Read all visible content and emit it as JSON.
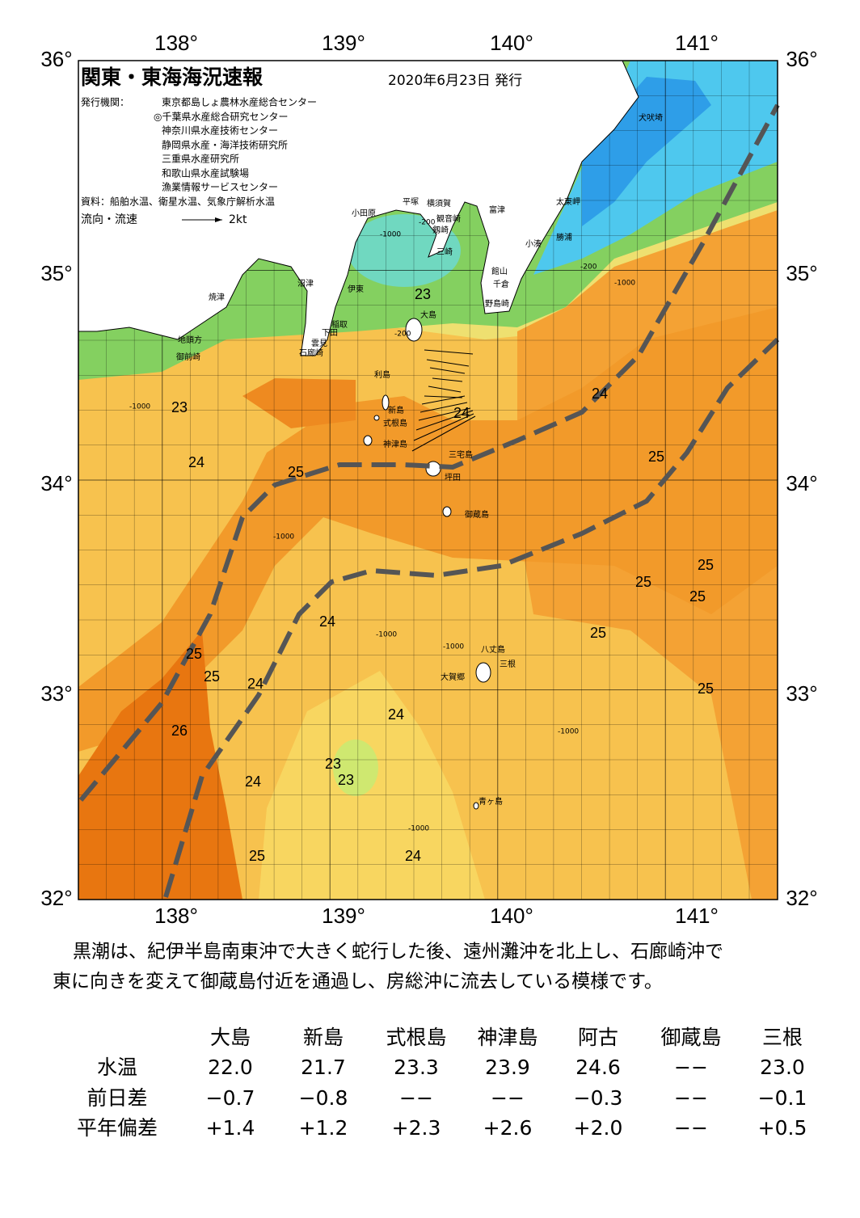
{
  "header": {
    "title": "関東・東海海況速報",
    "date": "2020年6月23日 発行",
    "issuer_label": "発行機関：",
    "issuers": [
      "東京都島しょ農林水産総合センター",
      "◎千葉県水産総合研究センター",
      "神奈川県水産技術センター",
      "静岡県水産・海洋技術研究所",
      "三重県水産研究所",
      "和歌山県水産試験場",
      "漁業情報サービスセンター"
    ],
    "source": "資料：船舶水温、衛星水温、気象庁解析水温",
    "flow_label": "流向・流速",
    "flow_scale": "2kt"
  },
  "axes": {
    "lat": [
      "36°",
      "35°",
      "34°",
      "33°",
      "32°"
    ],
    "lon": [
      "138°",
      "139°",
      "140°",
      "141°"
    ]
  },
  "places": [
    "犬吠埼",
    "太東岬",
    "勝浦",
    "小湊",
    "富津",
    "館山",
    "千倉",
    "野島崎",
    "横須賀",
    "観音崎",
    "剱崎",
    "三崎",
    "平塚",
    "小田原",
    "沼津",
    "伊東",
    "稲取",
    "下田",
    "雲見",
    "石廊崎",
    "焼津",
    "地頭方",
    "御前崎",
    "大島",
    "利島",
    "新島",
    "式根島",
    "神津島",
    "三宅島",
    "坪田",
    "御蔵島",
    "八丈島",
    "三根",
    "大賀郷",
    "青ヶ島"
  ],
  "temperatures": [
    "23",
    "23",
    "24",
    "25",
    "24",
    "24",
    "25",
    "25",
    "25",
    "25",
    "25",
    "24",
    "25",
    "25",
    "24",
    "25",
    "24",
    "26",
    "23",
    "23",
    "24",
    "25",
    "24"
  ],
  "depths": [
    "-200",
    "-1000",
    "-1000",
    "-1000",
    "-1000",
    "-1000",
    "-1000",
    "-200",
    "-1000",
    "-200",
    "-1000"
  ],
  "description": [
    "黒潮は、紀伊半島南東沖で大きく蛇行した後、遠州灘沖を北上し、石廊崎沖で",
    "東に向きを変えて御蔵島付近を通過し、房総沖に流去している模様です。"
  ],
  "table": {
    "columns": [
      "大島",
      "新島",
      "式根島",
      "神津島",
      "阿古",
      "御蔵島",
      "三根"
    ],
    "rows": [
      {
        "label": "水温",
        "cells": [
          "22.0",
          "21.7",
          "23.3",
          "23.9",
          "24.6",
          "−−",
          "23.0"
        ]
      },
      {
        "label": "前日差",
        "cells": [
          "−0.7",
          "−0.8",
          "−−",
          "−−",
          "−0.3",
          "−−",
          "−0.1"
        ]
      },
      {
        "label": "平年偏差",
        "cells": [
          "+1.4",
          "+1.2",
          "+2.3",
          "+2.6",
          "+2.0",
          "−−",
          "+0.5"
        ]
      }
    ]
  }
}
